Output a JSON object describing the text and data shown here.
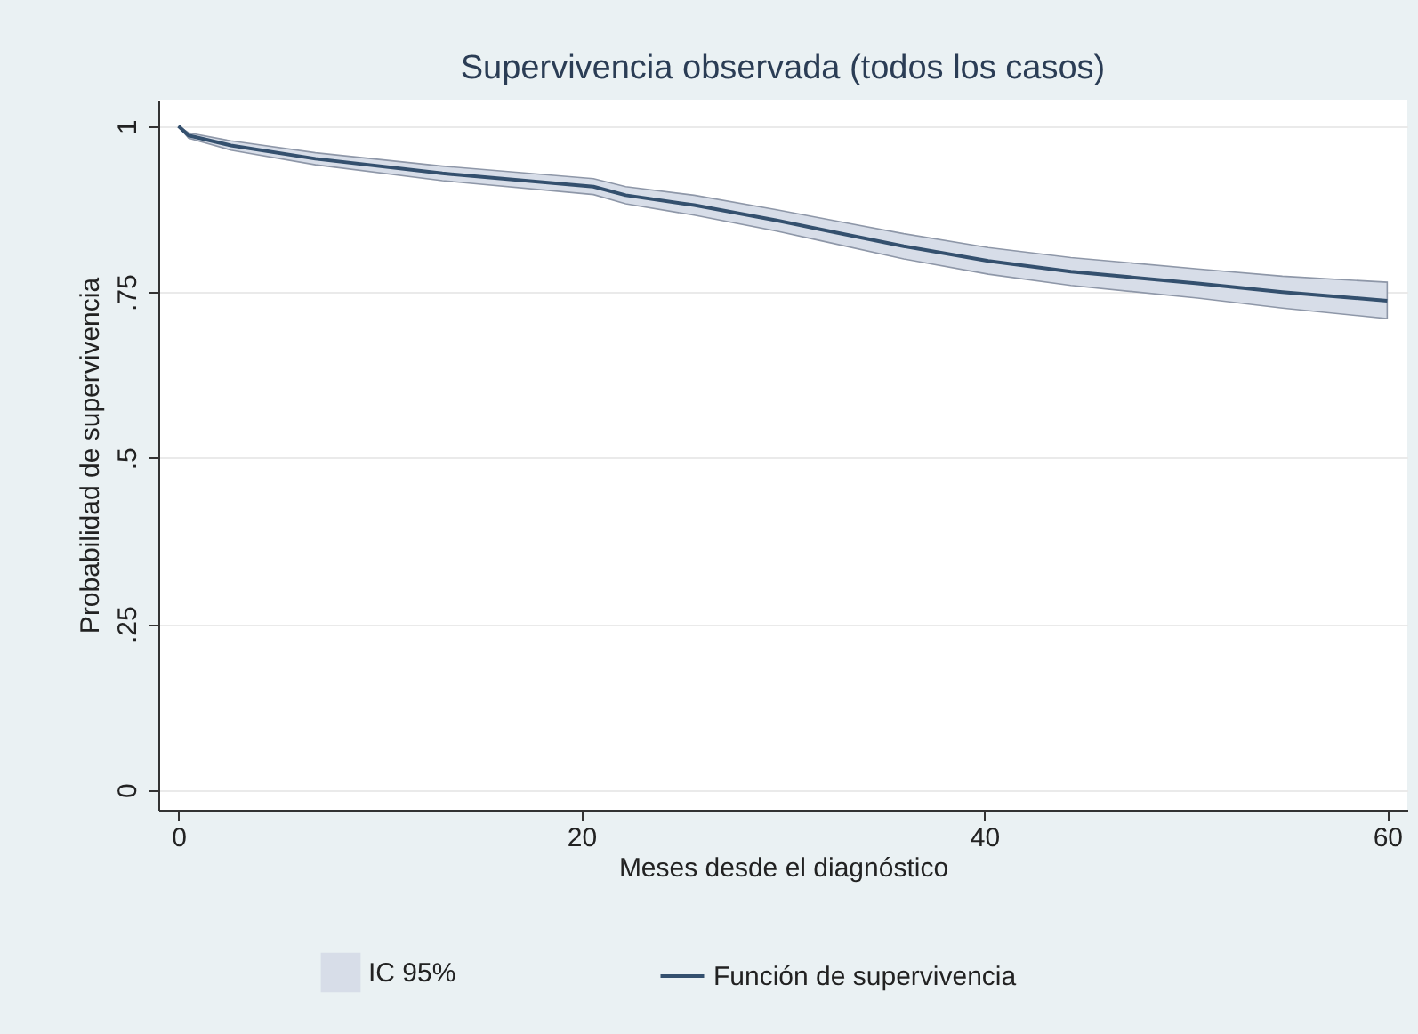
{
  "chart_data": {
    "type": "line",
    "title": "Supervivencia observada (todos los casos)",
    "xlabel": "Meses desde el diagnóstico",
    "ylabel": "Probabilidad de supervivencia",
    "annotations": [
      "IC 95%"
    ],
    "x": [
      0,
      0.5,
      2.6,
      6.8,
      13.1,
      20.6,
      22.2,
      25.6,
      29.7,
      31.8,
      36,
      40.2,
      44.3,
      50.6,
      54.8,
      60
    ],
    "series": [
      {
        "name": "Función de supervivencia",
        "color": "#34506e",
        "values": [
          1,
          0.986,
          0.971,
          0.951,
          0.929,
          0.909,
          0.896,
          0.881,
          0.858,
          0.845,
          0.819,
          0.797,
          0.781,
          0.763,
          0.75,
          0.737
        ],
        "lower": [
          1,
          0.982,
          0.964,
          0.942,
          0.918,
          0.897,
          0.883,
          0.866,
          0.842,
          0.828,
          0.8,
          0.777,
          0.76,
          0.741,
          0.726,
          0.71
        ],
        "upper": [
          1,
          0.99,
          0.978,
          0.96,
          0.94,
          0.921,
          0.909,
          0.896,
          0.874,
          0.862,
          0.838,
          0.817,
          0.802,
          0.785,
          0.774,
          0.765
        ]
      }
    ],
    "xlim": [
      -1,
      61
    ],
    "xticks": [
      0,
      20,
      40,
      60
    ],
    "ylim": [
      -0.03,
      1.04
    ],
    "yticks": [
      0,
      {
        "value": 0.25,
        "label": ".25"
      },
      {
        "value": 0.5,
        "label": ".5"
      },
      {
        "value": 0.75,
        "label": ".75"
      },
      1
    ],
    "grid": "y",
    "legend": "bottom",
    "marker": "none",
    "line_style": "solid"
  }
}
